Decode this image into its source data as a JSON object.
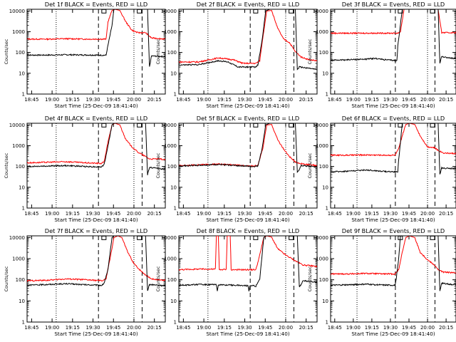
{
  "chart_data": {
    "type": "line",
    "layout": {
      "rows": 3,
      "cols": 3
    },
    "shared": {
      "ylabel": "Counts/sec",
      "xlabel": "Start Time (25-Dec-09 18:41:40)",
      "x_ticks": [
        "18:45",
        "19:00",
        "19:15",
        "19:30",
        "19:45",
        "20:00",
        "20:15"
      ],
      "y_ticks": [
        "1",
        "10",
        "100",
        "1000",
        "10000"
      ],
      "y_scale": "log",
      "ylim": [
        1,
        12000
      ],
      "xlim": [
        "18:41:40",
        "20:23:00"
      ],
      "series_colors": {
        "events": "#000000",
        "lld": "#ff0000"
      },
      "dotted_times": [
        "19:03",
        "20:00"
      ],
      "dashed_times": [
        "19:34",
        "20:06"
      ],
      "marker_times": [
        "19:38",
        "20:04"
      ],
      "marker_value": 10000
    },
    "panels": [
      {
        "title": "Det 1f BLACK = Events, RED = LLD",
        "events": [
          [
            0,
            75
          ],
          [
            20,
            75
          ],
          [
            40,
            78
          ],
          [
            60,
            76
          ],
          [
            80,
            74
          ],
          [
            81,
            130
          ],
          [
            86,
            2000
          ],
          [
            88,
            12000
          ],
          [
            118,
            12000
          ],
          [
            122,
            12000
          ],
          [
            124,
            20
          ],
          [
            126,
            68
          ],
          [
            136,
            65
          ],
          [
            140,
            62
          ]
        ],
        "lld": [
          [
            0,
            440
          ],
          [
            20,
            440
          ],
          [
            40,
            460
          ],
          [
            60,
            440
          ],
          [
            80,
            440
          ],
          [
            82,
            3000
          ],
          [
            86,
            10500
          ],
          [
            89,
            12000
          ],
          [
            94,
            10500
          ],
          [
            100,
            3000
          ],
          [
            106,
            1200
          ],
          [
            112,
            900
          ],
          [
            120,
            900
          ],
          [
            126,
            500
          ],
          [
            136,
            460
          ],
          [
            140,
            440
          ]
        ]
      },
      {
        "title": "Det 2f BLACK = Events, RED = LLD",
        "events": [
          [
            0,
            25
          ],
          [
            20,
            26
          ],
          [
            40,
            40
          ],
          [
            50,
            35
          ],
          [
            60,
            20
          ],
          [
            78,
            20
          ],
          [
            80,
            25
          ],
          [
            84,
            300
          ],
          [
            88,
            10000
          ],
          [
            92,
            12000
          ],
          [
            112,
            12000
          ],
          [
            118,
            12000
          ],
          [
            120,
            15
          ],
          [
            122,
            20
          ],
          [
            130,
            18
          ],
          [
            140,
            15
          ]
        ],
        "lld": [
          [
            0,
            35
          ],
          [
            20,
            35
          ],
          [
            40,
            55
          ],
          [
            55,
            45
          ],
          [
            65,
            30
          ],
          [
            78,
            30
          ],
          [
            82,
            40
          ],
          [
            85,
            500
          ],
          [
            89,
            10000
          ],
          [
            94,
            10500
          ],
          [
            100,
            1500
          ],
          [
            106,
            450
          ],
          [
            112,
            300
          ],
          [
            118,
            110
          ],
          [
            124,
            60
          ],
          [
            132,
            45
          ],
          [
            140,
            40
          ]
        ]
      },
      {
        "title": "Det 3f BLACK = Events, RED = LLD",
        "events": [
          [
            0,
            42
          ],
          [
            20,
            45
          ],
          [
            40,
            48
          ],
          [
            50,
            52
          ],
          [
            60,
            45
          ],
          [
            70,
            42
          ],
          [
            74,
            40
          ],
          [
            75,
            200
          ],
          [
            80,
            12000
          ],
          [
            118,
            12000
          ],
          [
            120,
            12000
          ],
          [
            122,
            30
          ],
          [
            124,
            65
          ],
          [
            132,
            55
          ],
          [
            140,
            50
          ]
        ],
        "lld": [
          [
            0,
            850
          ],
          [
            20,
            850
          ],
          [
            40,
            850
          ],
          [
            60,
            850
          ],
          [
            75,
            850
          ],
          [
            78,
            1000
          ],
          [
            82,
            12000
          ],
          [
            116,
            12000
          ],
          [
            120,
            12000
          ],
          [
            124,
            900
          ],
          [
            140,
            900
          ]
        ]
      },
      {
        "title": "Det 4f BLACK = Events, RED = LLD",
        "events": [
          [
            0,
            100
          ],
          [
            20,
            105
          ],
          [
            40,
            110
          ],
          [
            60,
            100
          ],
          [
            75,
            95
          ],
          [
            78,
            120
          ],
          [
            82,
            1000
          ],
          [
            86,
            10000
          ],
          [
            88,
            12000
          ],
          [
            118,
            12000
          ],
          [
            120,
            12000
          ],
          [
            122,
            40
          ],
          [
            124,
            90
          ],
          [
            134,
            80
          ],
          [
            140,
            72
          ]
        ],
        "lld": [
          [
            0,
            150
          ],
          [
            20,
            160
          ],
          [
            40,
            170
          ],
          [
            60,
            150
          ],
          [
            75,
            140
          ],
          [
            78,
            170
          ],
          [
            82,
            1500
          ],
          [
            86,
            10000
          ],
          [
            89,
            12000
          ],
          [
            94,
            10000
          ],
          [
            100,
            2000
          ],
          [
            106,
            900
          ],
          [
            112,
            500
          ],
          [
            120,
            300
          ],
          [
            124,
            230
          ],
          [
            134,
            230
          ],
          [
            140,
            210
          ]
        ]
      },
      {
        "title": "Det 5f BLACK = Events, RED = LLD",
        "events": [
          [
            0,
            105
          ],
          [
            20,
            115
          ],
          [
            40,
            125
          ],
          [
            60,
            110
          ],
          [
            75,
            100
          ],
          [
            80,
            105
          ],
          [
            84,
            600
          ],
          [
            88,
            10000
          ],
          [
            92,
            12000
          ],
          [
            114,
            12000
          ],
          [
            118,
            12000
          ],
          [
            120,
            50
          ],
          [
            124,
            110
          ],
          [
            134,
            100
          ],
          [
            140,
            95
          ]
        ],
        "lld": [
          [
            0,
            110
          ],
          [
            20,
            120
          ],
          [
            40,
            130
          ],
          [
            60,
            115
          ],
          [
            75,
            105
          ],
          [
            80,
            112
          ],
          [
            85,
            700
          ],
          [
            89,
            10000
          ],
          [
            94,
            10500
          ],
          [
            100,
            2000
          ],
          [
            106,
            700
          ],
          [
            112,
            300
          ],
          [
            118,
            160
          ],
          [
            126,
            130
          ],
          [
            140,
            110
          ]
        ]
      },
      {
        "title": "Det 6f BLACK = Events, RED = LLD",
        "events": [
          [
            0,
            55
          ],
          [
            20,
            60
          ],
          [
            40,
            68
          ],
          [
            60,
            58
          ],
          [
            75,
            55
          ],
          [
            76,
            200
          ],
          [
            80,
            12000
          ],
          [
            118,
            12000
          ],
          [
            120,
            12000
          ],
          [
            122,
            40
          ],
          [
            124,
            85
          ],
          [
            134,
            80
          ],
          [
            140,
            80
          ]
        ],
        "lld": [
          [
            0,
            350
          ],
          [
            20,
            350
          ],
          [
            40,
            360
          ],
          [
            60,
            350
          ],
          [
            72,
            350
          ],
          [
            76,
            700
          ],
          [
            80,
            3000
          ],
          [
            84,
            10500
          ],
          [
            88,
            12000
          ],
          [
            94,
            10500
          ],
          [
            100,
            3000
          ],
          [
            108,
            900
          ],
          [
            116,
            800
          ],
          [
            120,
            600
          ],
          [
            126,
            450
          ],
          [
            134,
            430
          ],
          [
            140,
            420
          ]
        ]
      },
      {
        "title": "Det 7f BLACK = Events, RED = LLD",
        "events": [
          [
            0,
            55
          ],
          [
            20,
            60
          ],
          [
            40,
            65
          ],
          [
            60,
            58
          ],
          [
            76,
            55
          ],
          [
            78,
            70
          ],
          [
            82,
            300
          ],
          [
            86,
            10000
          ],
          [
            88,
            12000
          ],
          [
            118,
            12000
          ],
          [
            120,
            12000
          ],
          [
            122,
            30
          ],
          [
            124,
            60
          ],
          [
            134,
            55
          ],
          [
            140,
            52
          ]
        ],
        "lld": [
          [
            0,
            90
          ],
          [
            20,
            95
          ],
          [
            40,
            110
          ],
          [
            60,
            100
          ],
          [
            76,
            90
          ],
          [
            80,
            110
          ],
          [
            84,
            1000
          ],
          [
            88,
            10000
          ],
          [
            92,
            12000
          ],
          [
            96,
            10000
          ],
          [
            102,
            2000
          ],
          [
            108,
            600
          ],
          [
            114,
            300
          ],
          [
            120,
            170
          ],
          [
            126,
            110
          ],
          [
            134,
            100
          ],
          [
            140,
            95
          ]
        ]
      },
      {
        "title": "Det 8f BLACK = Events, RED = LLD",
        "events": [
          [
            0,
            55
          ],
          [
            20,
            60
          ],
          [
            38,
            58
          ],
          [
            39,
            30
          ],
          [
            40,
            58
          ],
          [
            60,
            55
          ],
          [
            70,
            52
          ],
          [
            71,
            30
          ],
          [
            72,
            55
          ],
          [
            78,
            50
          ],
          [
            82,
            110
          ],
          [
            86,
            10000
          ],
          [
            88,
            12000
          ],
          [
            116,
            12000
          ],
          [
            120,
            12000
          ],
          [
            122,
            45
          ],
          [
            126,
            90
          ],
          [
            136,
            80
          ],
          [
            140,
            75
          ]
        ],
        "lld": [
          [
            0,
            300
          ],
          [
            20,
            320
          ],
          [
            37,
            320
          ],
          [
            38,
            12000
          ],
          [
            40,
            12000
          ],
          [
            41,
            300
          ],
          [
            48,
            310
          ],
          [
            49,
            12000
          ],
          [
            52,
            12000
          ],
          [
            53,
            300
          ],
          [
            70,
            300
          ],
          [
            71,
            300
          ],
          [
            78,
            300
          ],
          [
            82,
            1500
          ],
          [
            86,
            10000
          ],
          [
            89,
            12000
          ],
          [
            94,
            10500
          ],
          [
            100,
            3000
          ],
          [
            108,
            1500
          ],
          [
            116,
            900
          ],
          [
            120,
            700
          ],
          [
            126,
            500
          ],
          [
            136,
            450
          ],
          [
            140,
            420
          ]
        ]
      },
      {
        "title": "Det 9f BLACK = Events, RED = LLD",
        "events": [
          [
            0,
            55
          ],
          [
            20,
            58
          ],
          [
            40,
            62
          ],
          [
            60,
            56
          ],
          [
            72,
            55
          ],
          [
            73,
            90
          ],
          [
            76,
            1000
          ],
          [
            78,
            12000
          ],
          [
            118,
            12000
          ],
          [
            120,
            12000
          ],
          [
            122,
            30
          ],
          [
            124,
            70
          ],
          [
            134,
            60
          ],
          [
            140,
            60
          ]
        ],
        "lld": [
          [
            0,
            190
          ],
          [
            20,
            190
          ],
          [
            40,
            200
          ],
          [
            60,
            190
          ],
          [
            72,
            190
          ],
          [
            76,
            300
          ],
          [
            80,
            2000
          ],
          [
            84,
            10000
          ],
          [
            88,
            12000
          ],
          [
            94,
            10000
          ],
          [
            100,
            2000
          ],
          [
            108,
            900
          ],
          [
            116,
            500
          ],
          [
            120,
            300
          ],
          [
            126,
            230
          ],
          [
            134,
            220
          ],
          [
            140,
            210
          ]
        ]
      }
    ]
  }
}
